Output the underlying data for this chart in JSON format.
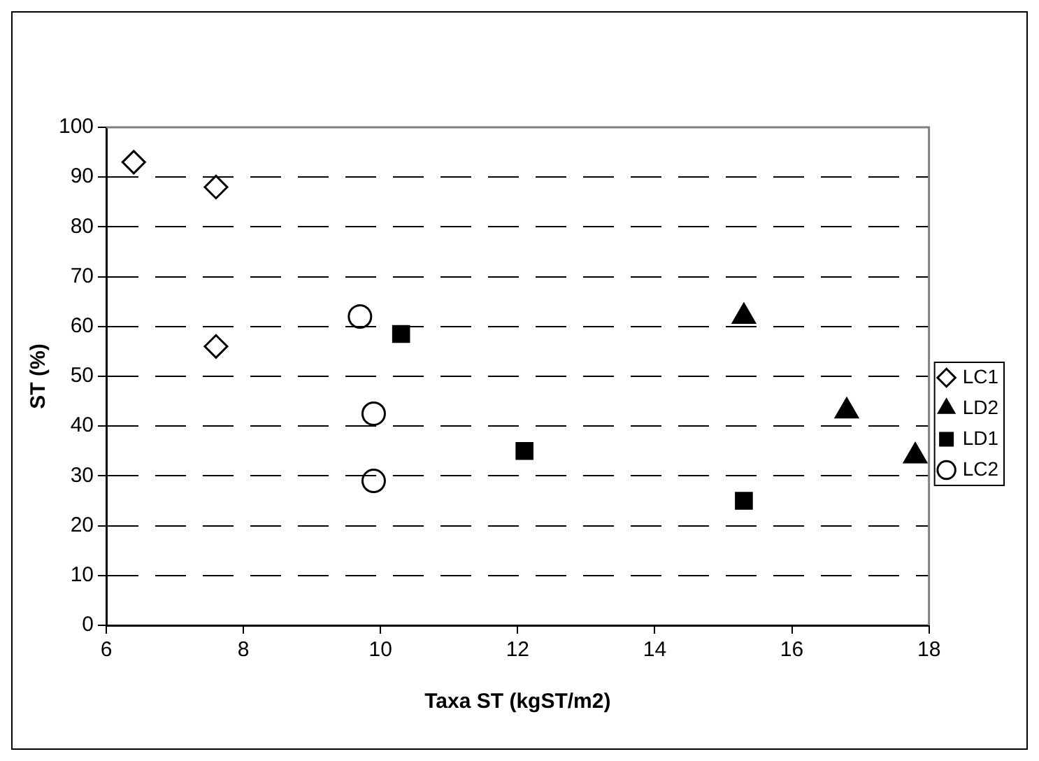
{
  "chart_data": {
    "type": "scatter",
    "xlabel": "Taxa ST (kgST/m2)",
    "ylabel": "ST (%)",
    "series": [
      {
        "name": "LC1",
        "color": "#000000",
        "marker": "diamond",
        "x": [
          6.4,
          7.6,
          7.6
        ],
        "values": [
          93,
          88,
          56
        ]
      },
      {
        "name": "LD2",
        "color": "#000000",
        "marker": "triangle",
        "x": [
          15.3,
          16.8,
          17.8
        ],
        "values": [
          62,
          43,
          34
        ]
      },
      {
        "name": "LD1",
        "color": "#000000",
        "marker": "square",
        "x": [
          10.3,
          12.1,
          15.3
        ],
        "values": [
          58.5,
          35,
          25
        ]
      },
      {
        "name": "LC2",
        "color": "#000000",
        "marker": "circle",
        "x": [
          9.7,
          9.9,
          9.9
        ],
        "values": [
          62,
          42.5,
          29
        ]
      }
    ],
    "xlim": [
      6,
      18
    ],
    "xticks": [
      6,
      8,
      10,
      12,
      14,
      16,
      18
    ],
    "ylim": [
      0,
      100
    ],
    "yticks": [
      0,
      10,
      20,
      30,
      40,
      50,
      60,
      70,
      80,
      90,
      100
    ],
    "grid": "y",
    "legend": "right"
  }
}
